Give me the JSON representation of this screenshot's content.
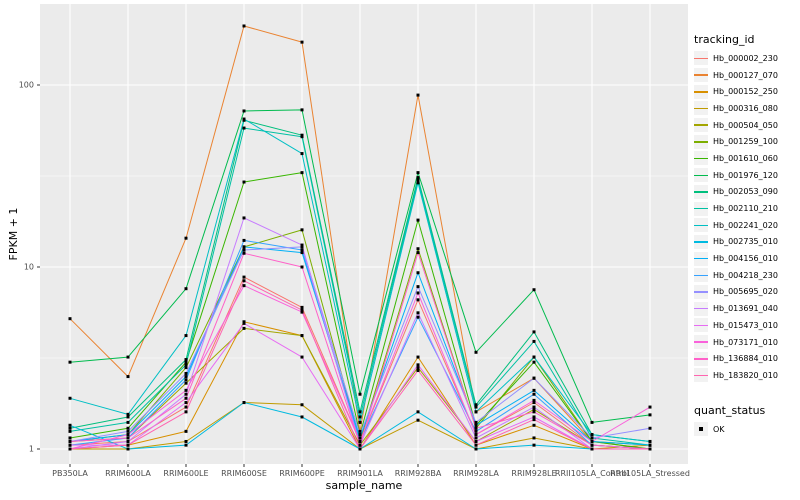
{
  "chart_data": {
    "type": "line",
    "title": "",
    "xlabel": "sample_name",
    "ylabel": "FPKM + 1",
    "y_scale": "log10",
    "y_ticks": [
      1,
      10,
      100
    ],
    "y_minor_ticks": [
      3.162,
      31.62
    ],
    "ylim": [
      0.83,
      278
    ],
    "grid": "white major/minor on grey panel",
    "legend_position": "right",
    "point_marker": "black square (quant_status OK)",
    "categories": [
      "PB350LA",
      "RRIM600LA",
      "RRIM600LE",
      "RRIM600SE",
      "RRIM600PE",
      "RRIM901LA",
      "RRIM928BA",
      "RRIM928LA",
      "RRIM928LE",
      "RRII105LA_Control",
      "RRII105LA_Stressed"
    ],
    "series": [
      {
        "name": "Hb_000002_230",
        "color": "#F8766D",
        "values": [
          1.05,
          1.1,
          1.7,
          8.8,
          6.0,
          1.1,
          6.6,
          1.2,
          1.8,
          1.05,
          1.0
        ]
      },
      {
        "name": "Hb_000127_070",
        "color": "#EA8331",
        "values": [
          5.2,
          2.5,
          14.4,
          211,
          172,
          1.25,
          88,
          1.6,
          2.45,
          1.1,
          1.0
        ]
      },
      {
        "name": "Hb_000152_250",
        "color": "#D89000",
        "values": [
          1.0,
          1.05,
          1.25,
          5.0,
          4.2,
          1.0,
          3.2,
          1.05,
          1.35,
          1.0,
          1.0
        ]
      },
      {
        "name": "Hb_000316_080",
        "color": "#C09B00",
        "values": [
          1.0,
          1.0,
          1.1,
          1.8,
          1.75,
          1.0,
          1.44,
          1.0,
          1.15,
          1.0,
          1.05
        ]
      },
      {
        "name": "Hb_000504_050",
        "color": "#A3A500",
        "values": [
          1.1,
          1.15,
          2.3,
          4.6,
          4.2,
          1.05,
          2.8,
          1.1,
          1.65,
          1.05,
          1.0
        ]
      },
      {
        "name": "Hb_001259_100",
        "color": "#7CAE00",
        "values": [
          1.1,
          1.2,
          2.8,
          12.9,
          16.0,
          1.1,
          12.6,
          1.3,
          3.2,
          1.1,
          1.05
        ]
      },
      {
        "name": "Hb_001610_060",
        "color": "#39B600",
        "values": [
          1.15,
          1.3,
          3.0,
          29.3,
          33.0,
          1.2,
          18.1,
          1.35,
          3.0,
          1.1,
          1.0
        ]
      },
      {
        "name": "Hb_001976_120",
        "color": "#00BB4E",
        "values": [
          3.0,
          3.2,
          7.6,
          72,
          73,
          2.0,
          33,
          3.4,
          7.5,
          1.4,
          1.54
        ]
      },
      {
        "name": "Hb_002053_090",
        "color": "#00BF7D",
        "values": [
          1.3,
          1.5,
          3.1,
          64,
          53,
          1.6,
          31,
          1.75,
          4.4,
          1.2,
          1.1
        ]
      },
      {
        "name": "Hb_002110_210",
        "color": "#00C1A3",
        "values": [
          1.25,
          1.4,
          2.9,
          58,
          52,
          1.5,
          30,
          1.7,
          3.9,
          1.15,
          1.05
        ]
      },
      {
        "name": "Hb_002241_020",
        "color": "#00BFC4",
        "values": [
          1.9,
          1.55,
          4.2,
          65,
          42,
          1.4,
          29,
          1.6,
          3.2,
          1.2,
          1.1
        ]
      },
      {
        "name": "Hb_002735_010",
        "color": "#00BAE0",
        "values": [
          1.35,
          1.0,
          1.05,
          1.8,
          1.5,
          1.0,
          1.6,
          1.0,
          1.05,
          1.0,
          1.0
        ]
      },
      {
        "name": "Hb_004156_010",
        "color": "#00B0F6",
        "values": [
          1.1,
          1.2,
          2.5,
          12.9,
          12.0,
          1.15,
          9.3,
          1.35,
          2.1,
          1.1,
          1.05
        ]
      },
      {
        "name": "Hb_004218_230",
        "color": "#35A2FF",
        "values": [
          1.05,
          1.15,
          2.4,
          14.0,
          12.4,
          1.1,
          5.3,
          1.25,
          2.0,
          1.05,
          1.0
        ]
      },
      {
        "name": "Hb_005695_020",
        "color": "#9590FF",
        "values": [
          1.1,
          1.25,
          2.6,
          12.4,
          12.9,
          1.2,
          7.8,
          1.4,
          2.45,
          1.15,
          1.3
        ]
      },
      {
        "name": "Hb_013691_040",
        "color": "#C77CFF",
        "values": [
          1.0,
          1.1,
          2.0,
          18.6,
          13.2,
          1.05,
          5.6,
          1.15,
          1.7,
          1.0,
          1.0
        ]
      },
      {
        "name": "Hb_015473_010",
        "color": "#E76BF3",
        "values": [
          1.05,
          1.05,
          1.8,
          4.9,
          3.2,
          1.0,
          2.9,
          1.1,
          1.5,
          1.0,
          1.0
        ]
      },
      {
        "name": "Hb_073171_010",
        "color": "#FA62DB",
        "values": [
          1.0,
          1.2,
          2.1,
          7.9,
          5.65,
          1.1,
          7.2,
          1.2,
          1.85,
          1.1,
          1.7
        ]
      },
      {
        "name": "Hb_136884_010",
        "color": "#FF61C9",
        "values": [
          1.1,
          1.15,
          1.9,
          11.9,
          10.0,
          1.05,
          12.0,
          1.3,
          1.6,
          1.05,
          1.0
        ]
      },
      {
        "name": "Hb_183820_010",
        "color": "#FF65B0",
        "values": [
          1.0,
          1.05,
          1.6,
          8.4,
          5.8,
          1.0,
          2.7,
          1.05,
          1.45,
          1.0,
          1.0
        ]
      }
    ]
  },
  "legend": {
    "tracking_title": "tracking_id",
    "quant_title": "quant_status",
    "quant_items": [
      {
        "label": "OK"
      }
    ]
  },
  "colors": {
    "panel_bg": "#EBEBEB",
    "grid": "#FFFFFF",
    "axis_text": "#4D4D4D",
    "title_text": "#000000",
    "point": "#000000",
    "legend_key_bg": "#F2F2F2",
    "tick": "#333333"
  }
}
